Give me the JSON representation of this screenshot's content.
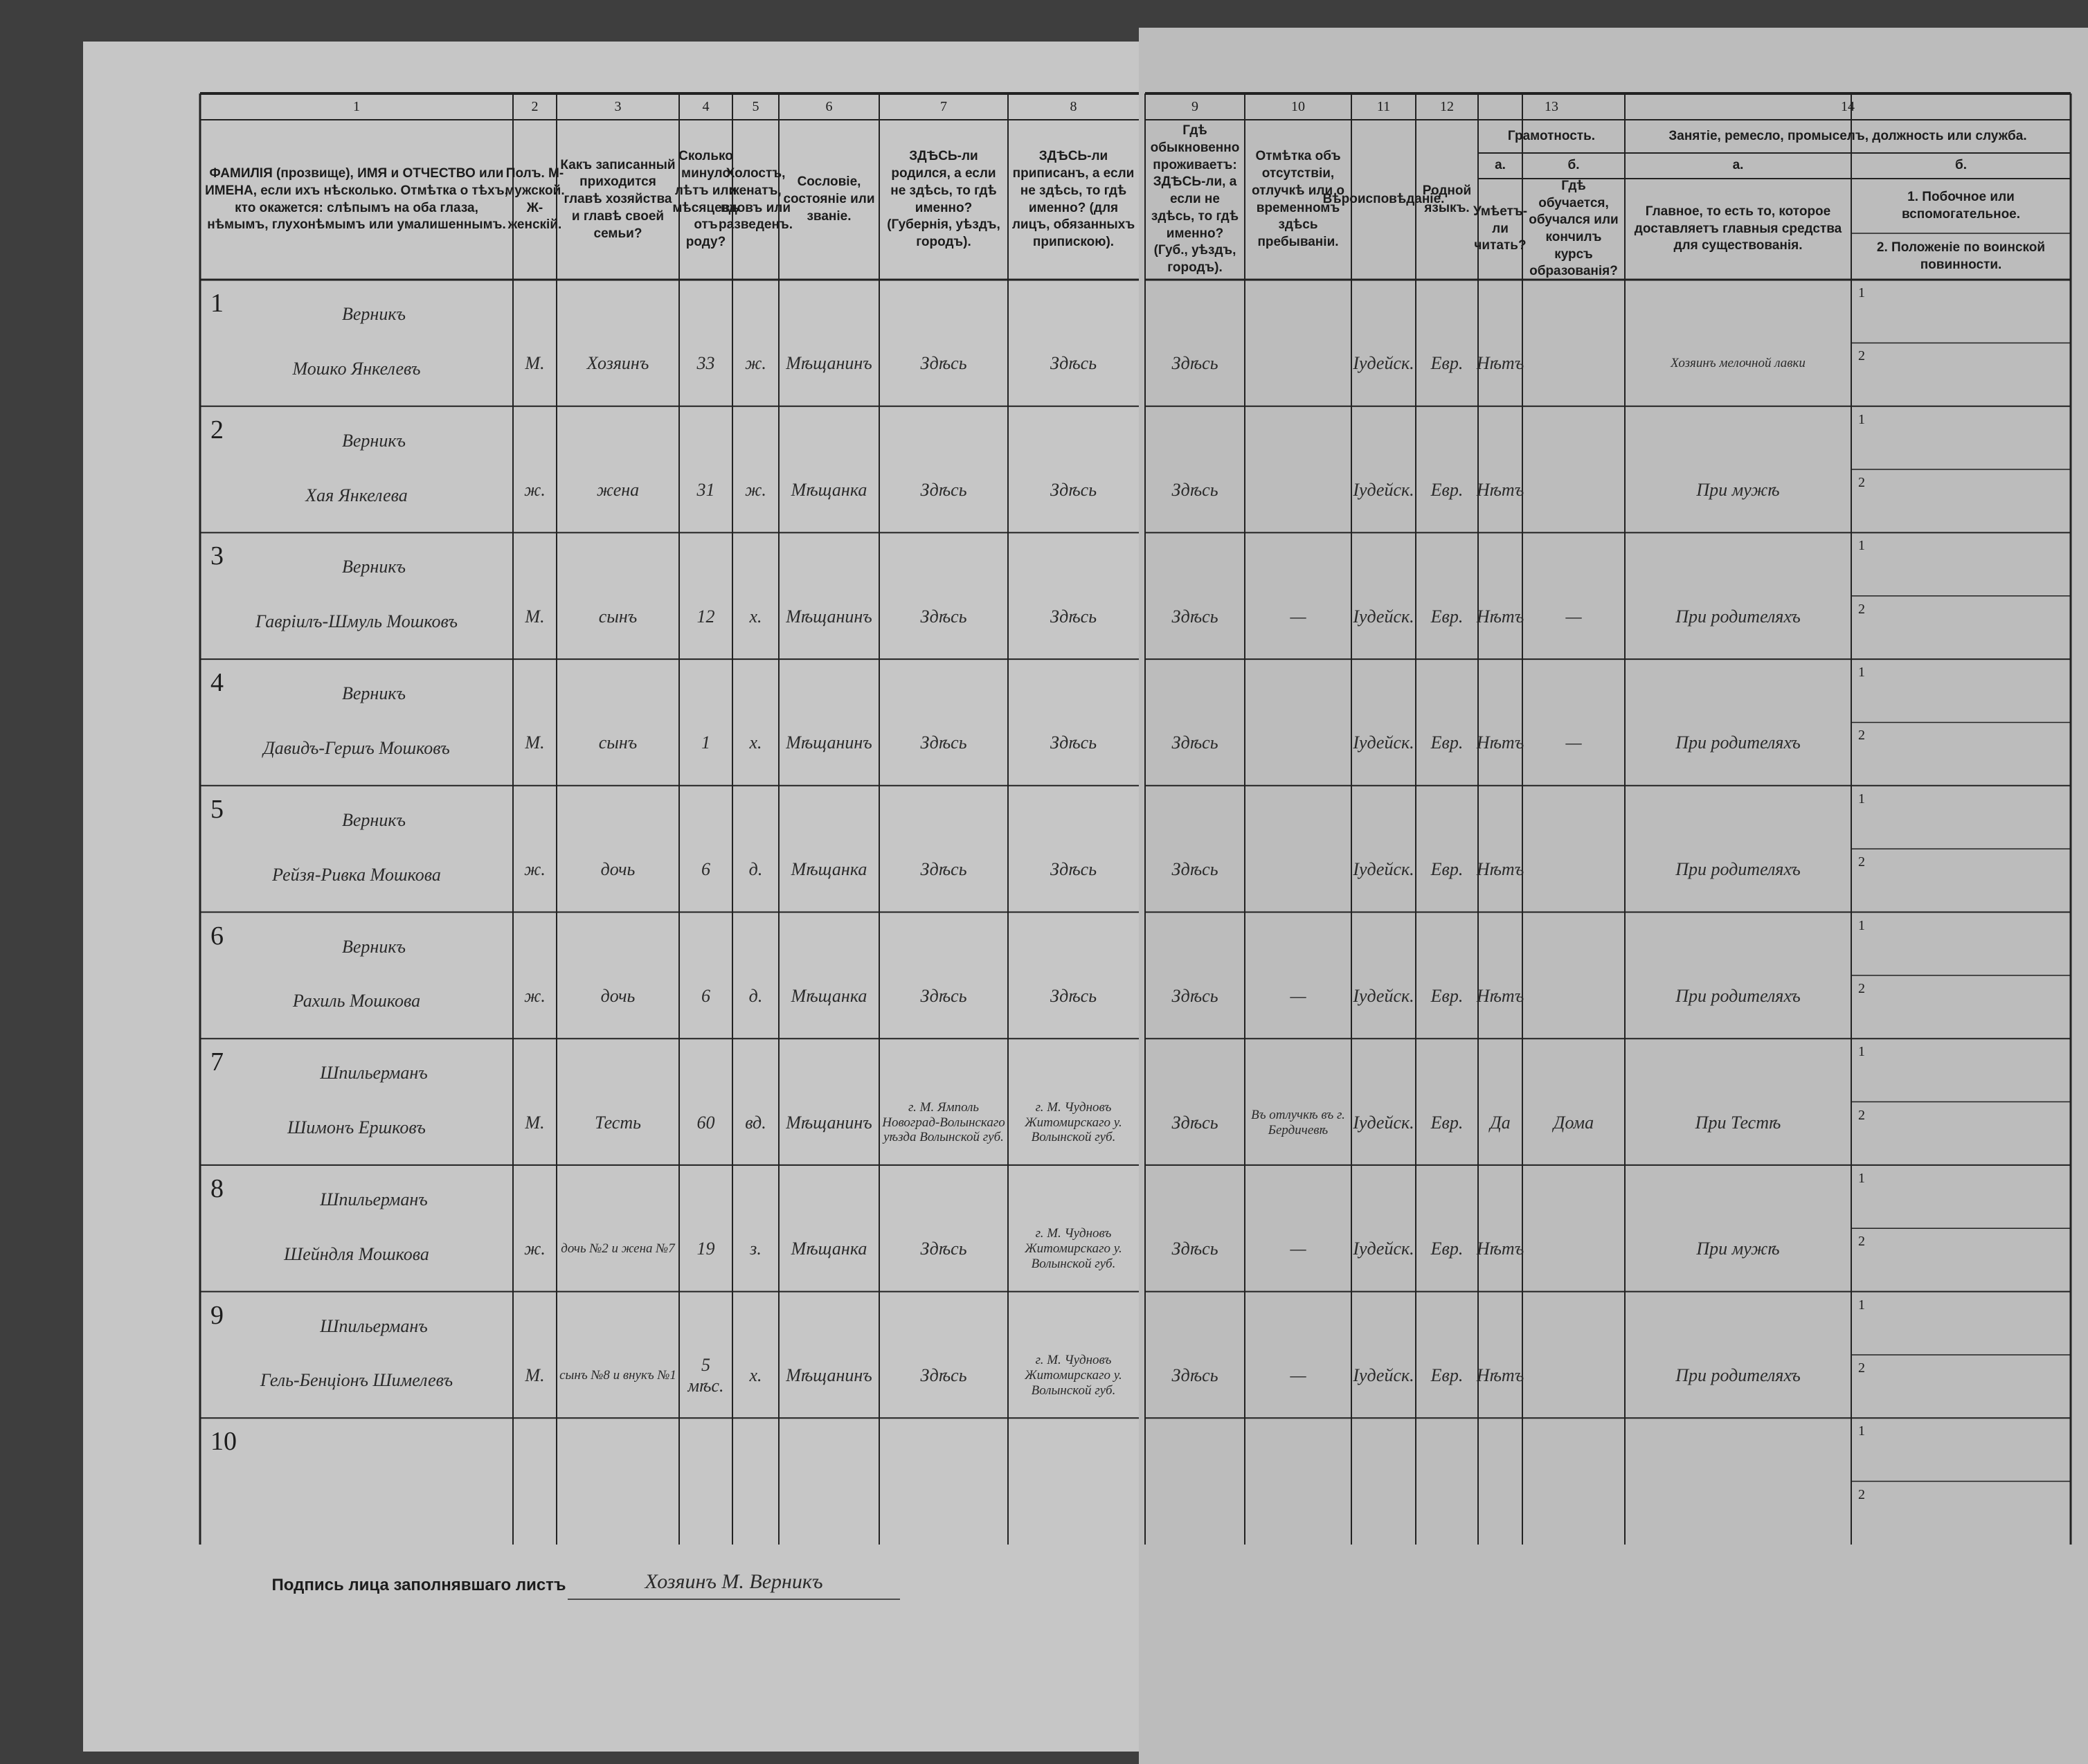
{
  "form": {
    "column_numbers": [
      "1",
      "2",
      "3",
      "4",
      "5",
      "6",
      "7",
      "8",
      "9",
      "10",
      "11",
      "12",
      "13",
      "14"
    ],
    "headers": [
      "ФАМИЛІЯ (прозвище), ИМЯ и ОТЧЕСТВО или ИМЕНА, если ихъ нѣсколько. Отмѣтка о тѣхъ, кто окажется: слѣпымъ на оба глаза, нѣмымъ, глухонѣмымъ или умалишеннымъ.",
      "Полъ. М-мужской. Ж-женскій.",
      "Какъ записанный приходится главѣ хозяйства и главѣ своей семьи?",
      "Сколько минуло лѣтъ или мѣсяцевъ отъ роду?",
      "Холостъ, женатъ, вдовъ или разведенъ.",
      "Сословіе, состояніе или званіе.",
      "ЗДѢСЬ-ли родился, а если не здѣсь, то гдѣ именно? (Губернія, уѣздъ, городъ).",
      "ЗДѢСЬ-ли приписанъ, а если не здѣсь, то гдѣ именно? (для лицъ, обязанныхъ припискою).",
      "Гдѣ обыкновенно проживаетъ: ЗДѢСЬ-ли, а если не здѣсь, то гдѣ именно? (Губ., уѣздъ, городъ).",
      "Отмѣтка объ отсутствіи, отлучкѣ или о временномъ здѣсь пребываніи.",
      "Вѣроисповѣданіе.",
      "Родной языкъ.",
      "Умѣетъ-ли читать?",
      "Гдѣ обучается, обучался или кончилъ курсъ образованія?",
      "Главное, то есть то, которое доставляетъ главныя средства для существованія."
    ],
    "literacy_group": {
      "title": "Грамотность.",
      "a": "а.",
      "b": "б."
    },
    "occupation_group": {
      "title": "Занятіе, ремесло, промыселъ, должность или служба.",
      "a": "а.",
      "b": "б.",
      "secondary": "1. Побочное или вспомогательное.",
      "military": "2. Положеніе по воинской повинности."
    },
    "row_sub_labels": [
      "1",
      "2"
    ],
    "rows": [
      {
        "number": "1",
        "surname": "Верникъ",
        "name": "Мошко Янкелевъ",
        "sex": "М.",
        "relation": "Хозяинъ",
        "age": "33",
        "marital": "ж.",
        "estate": "Мѣщанинъ",
        "birthplace": "Здѣсь",
        "registered": "Здѣсь",
        "residence": "Здѣсь",
        "religion": "Іудейск.",
        "language": "Евр.",
        "literate": "Нѣтъ",
        "occupation": "Хозяинъ мелочной лавки"
      },
      {
        "number": "2",
        "surname": "Верникъ",
        "name": "Хая Янкелева",
        "sex": "ж.",
        "relation": "жена",
        "age": "31",
        "marital": "ж.",
        "estate": "Мѣщанка",
        "birthplace": "Здѣсь",
        "registered": "Здѣсь",
        "residence": "Здѣсь",
        "religion": "Іудейск.",
        "language": "Евр.",
        "literate": "Нѣтъ",
        "occupation": "При мужѣ"
      },
      {
        "number": "3",
        "surname": "Верникъ",
        "name": "Гавріилъ-Шмуль Мошковъ",
        "sex": "М.",
        "relation": "сынъ",
        "age": "12",
        "marital": "х.",
        "estate": "Мѣщанинъ",
        "birthplace": "Здѣсь",
        "registered": "Здѣсь",
        "residence": "Здѣсь",
        "absence": "—",
        "religion": "Іудейск.",
        "language": "Евр.",
        "literate": "Нѣтъ",
        "education": "—",
        "occupation": "При родителяхъ"
      },
      {
        "number": "4",
        "surname": "Верникъ",
        "name": "Давидъ-Гершъ Мошковъ",
        "sex": "М.",
        "relation": "сынъ",
        "age": "1",
        "marital": "х.",
        "estate": "Мѣщанинъ",
        "birthplace": "Здѣсь",
        "registered": "Здѣсь",
        "residence": "Здѣсь",
        "religion": "Іудейск.",
        "language": "Евр.",
        "literate": "Нѣтъ",
        "education": "—",
        "occupation": "При родителяхъ"
      },
      {
        "number": "5",
        "surname": "Верникъ",
        "name": "Рейзя-Ривка Мошкова",
        "sex": "ж.",
        "relation": "дочь",
        "age": "6",
        "marital": "д.",
        "estate": "Мѣщанка",
        "birthplace": "Здѣсь",
        "registered": "Здѣсь",
        "residence": "Здѣсь",
        "religion": "Іудейск.",
        "language": "Евр.",
        "literate": "Нѣтъ",
        "occupation": "При родителяхъ"
      },
      {
        "number": "6",
        "surname": "Верникъ",
        "name": "Рахиль Мошкова",
        "sex": "ж.",
        "relation": "дочь",
        "age": "6",
        "marital": "д.",
        "estate": "Мѣщанка",
        "birthplace": "Здѣсь",
        "registered": "Здѣсь",
        "residence": "Здѣсь",
        "absence": "—",
        "religion": "Іудейск.",
        "language": "Евр.",
        "literate": "Нѣтъ",
        "occupation": "При родителяхъ"
      },
      {
        "number": "7",
        "surname": "Шпильерманъ",
        "name": "Шимонъ Ершковъ",
        "sex": "М.",
        "relation": "Тесть",
        "age": "60",
        "marital": "вд.",
        "estate": "Мѣщанинъ",
        "birthplace": "г. М. Ямполь Новоград-Волынскаго уѣзда Волынской губ.",
        "registered": "г. М. Чудновъ Житомирскаго у. Волынской губ.",
        "residence": "Здѣсь",
        "absence": "Въ отлучкѣ въ г. Бердичевѣ",
        "religion": "Іудейск.",
        "language": "Евр.",
        "literate": "Да",
        "education": "Дома",
        "occupation": "При Тестѣ"
      },
      {
        "number": "8",
        "surname": "Шпильерманъ",
        "name": "Шейндля Мошкова",
        "sex": "ж.",
        "relation": "дочь №2 и жена №7",
        "age": "19",
        "marital": "з.",
        "estate": "Мѣщанка",
        "birthplace": "Здѣсь",
        "registered": "г. М. Чудновъ Житомирскаго у. Волынской губ.",
        "residence": "Здѣсь",
        "absence": "—",
        "religion": "Іудейск.",
        "language": "Евр.",
        "literate": "Нѣтъ",
        "occupation": "При мужѣ"
      },
      {
        "number": "9",
        "surname": "Шпильерманъ",
        "name": "Гель-Бенціонъ Шимелевъ",
        "sex": "М.",
        "relation": "сынъ №8 и внукъ №1",
        "age": "5 мѣс.",
        "marital": "х.",
        "estate": "Мѣщанинъ",
        "birthplace": "Здѣсь",
        "registered": "г. М. Чудновъ Житомирскаго у. Волынской губ.",
        "residence": "Здѣсь",
        "absence": "—",
        "religion": "Іудейск.",
        "language": "Евр.",
        "literate": "Нѣтъ",
        "occupation": "При родителяхъ"
      },
      {
        "number": "10"
      }
    ],
    "signature": {
      "label": "Подпись лица заполнявшаго листъ",
      "value": "Хозяинъ М. Верникъ"
    }
  }
}
